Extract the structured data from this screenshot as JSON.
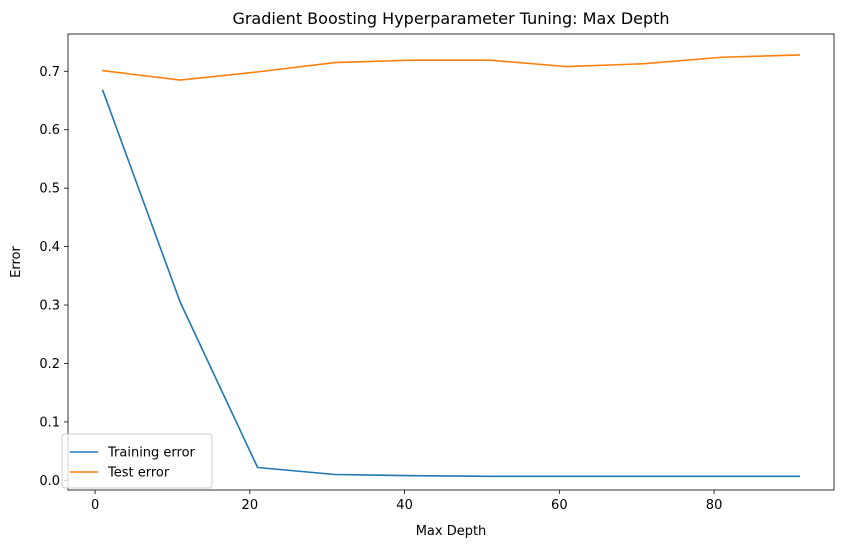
{
  "chart_data": {
    "type": "line",
    "title": "Gradient Boosting Hyperparameter Tuning: Max Depth",
    "xlabel": "Max Depth",
    "ylabel": "Error",
    "xlim": [
      -3.5,
      95.5
    ],
    "ylim": [
      -0.0165,
      0.7638
    ],
    "x_ticks": [
      0,
      20,
      40,
      60,
      80
    ],
    "x_tick_labels": [
      "0",
      "20",
      "40",
      "60",
      "80"
    ],
    "y_ticks": [
      0.0,
      0.1,
      0.2,
      0.3,
      0.4,
      0.5,
      0.6,
      0.7
    ],
    "y_tick_labels": [
      "0.0",
      "0.1",
      "0.2",
      "0.3",
      "0.4",
      "0.5",
      "0.6",
      "0.7"
    ],
    "grid": false,
    "legend_position": "lower-left",
    "x": [
      1,
      11,
      21,
      31,
      41,
      51,
      61,
      71,
      81,
      91
    ],
    "series": [
      {
        "name": "Training error",
        "color": "#1f77b4",
        "values": [
          0.667,
          0.305,
          0.022,
          0.01,
          0.008,
          0.007,
          0.007,
          0.007,
          0.007,
          0.007
        ]
      },
      {
        "name": "Test error",
        "color": "#ff7f0e",
        "values": [
          0.701,
          0.685,
          0.699,
          0.715,
          0.719,
          0.719,
          0.708,
          0.713,
          0.724,
          0.728
        ]
      }
    ]
  }
}
